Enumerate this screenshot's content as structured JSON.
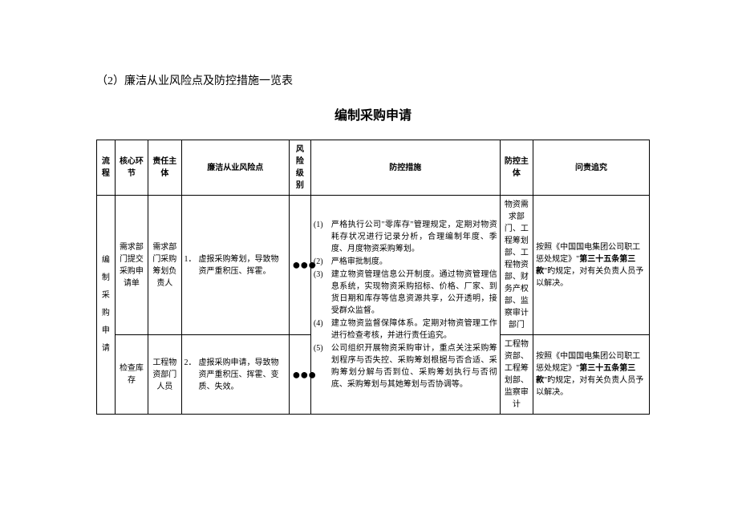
{
  "heading1": "（2）廉洁从业风险点及防控措施一览表",
  "heading2": "编制采购申请",
  "headers": {
    "process": "流程",
    "core": "核心环节",
    "resp": "责任主体",
    "risk": "廉洁从业风险点",
    "level": "风险级别",
    "measure": "防控措施",
    "subject": "防控主体",
    "account": "问责追究"
  },
  "process_name": "编制采购申请",
  "dots": "●●●",
  "rows": [
    {
      "core": "需求部门提交采购申请单",
      "resp": "需求部门采购筹划负责人",
      "risk_num": "1．",
      "risk_txt": "虚报采购筹划，导致物资严重积压、挥霍。",
      "subject": "物资需求部门、工程筹划部、工程物资部、财务产权部、监察审计部门",
      "account_pre": "按照《中国国电集团公司职工惩处规定》\"",
      "account_bold": "第三十五条第三款",
      "account_post": "\"旳规定，对有关负责人员予以解决。"
    },
    {
      "core": "检查库存",
      "resp": "工程物资部门人员",
      "risk_num": "2．",
      "risk_txt": "虚报采购申请，导致物资严重积压、挥霍、变质、失效。",
      "subject": "工程物资部、工程筹划部、监察审计",
      "account_pre": "按照《中国国电集团公司职工惩处规定》\"",
      "account_bold": "第三十五条第三款",
      "account_post": "\"旳规定，对有关负责人员予以解决。"
    }
  ],
  "measures": [
    {
      "num": "(1)",
      "txt": "严格执行公司\"零库存\"管理规定，定期对物资耗存状况进行记录分析，合理编制年度、季度、月度物资采购筹划。"
    },
    {
      "num": "(2)",
      "txt": "严格审批制度。"
    },
    {
      "num": "(3)",
      "txt": "建立物资管理信息公开制度。通过物资管理信息系统，实现物资采购招标、价格、厂家、到货日期和库存等信息资源共享，公开透明，接受群众监督。"
    },
    {
      "num": "(4)",
      "txt": "建立物资监督保障体系。定期对物资管理工作进行检查考核，并进行责任追究。"
    },
    {
      "num": "(5)",
      "txt": "公司组织开展物资采购审计，重点关注采购筹划程序与否失控、采购筹划根据与否合适、采购筹划分解与否到位、采购筹划执行与否彻底、采购筹划与其她筹划与否协调等。"
    }
  ]
}
